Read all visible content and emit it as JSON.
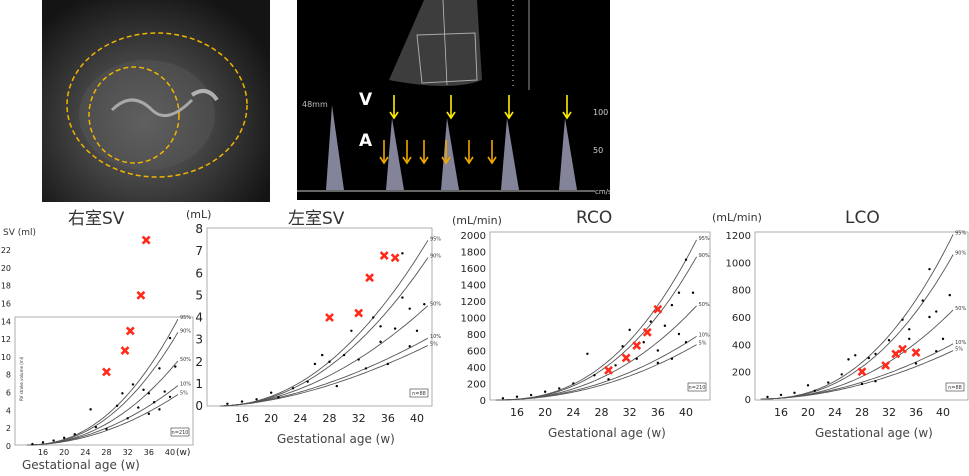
{
  "ultrasound_left": {
    "description_marks": [
      "dashed-ellipse-outer",
      "dashed-ellipse-inner"
    ],
    "ring_color": "#f0b400"
  },
  "ultrasound_right": {
    "label_v": "V",
    "label_a": "A",
    "depth_label": "48mm",
    "scale_100": "100",
    "scale_50": "50",
    "scale_unit": "cm/s",
    "v_arrow_color": "#ffee00",
    "a_arrow_color": "#f0a800"
  },
  "colors": {
    "patient": "#ff2a1a",
    "reference": "#000000",
    "curve": "#555555"
  },
  "chart_data": [
    {
      "id": "rvsv",
      "type": "scatter",
      "title": "右室SV",
      "ylabel": "SV (ml)",
      "inner_ylabel": "RV stroke volume (ml)",
      "xlabel": "Gestational age (w)",
      "x_unit": "(w)",
      "xlim": [
        12,
        42
      ],
      "ylim": [
        0,
        24
      ],
      "xticks": [
        16,
        20,
        24,
        28,
        32,
        36,
        40
      ],
      "yticks": [
        0,
        2,
        4,
        6,
        8,
        10,
        12,
        14,
        16,
        18,
        20,
        22
      ],
      "n_label": "n=210",
      "percentiles": [
        {
          "name": "95%",
          "at40": 12.5,
          "exp": 2.3
        },
        {
          "name": "90%",
          "at40": 11.2,
          "exp": 2.3
        },
        {
          "name": "50%",
          "at40": 8.4,
          "exp": 2.2
        },
        {
          "name": "10%",
          "at40": 6.0,
          "exp": 2.0
        },
        {
          "name": "5%",
          "at40": 5.1,
          "exp": 2.0
        }
      ],
      "patient": [
        [
          28,
          8.2
        ],
        [
          31.5,
          10.6
        ],
        [
          32.5,
          12.8
        ],
        [
          34.5,
          16.8
        ],
        [
          35.5,
          23.0
        ]
      ],
      "reference": [
        [
          14,
          0.1
        ],
        [
          16,
          0.3
        ],
        [
          18,
          0.5
        ],
        [
          20,
          0.8
        ],
        [
          22,
          1.2
        ],
        [
          25,
          4.0
        ],
        [
          26,
          2.0
        ],
        [
          28,
          1.8
        ],
        [
          30,
          4.4
        ],
        [
          31,
          5.8
        ],
        [
          32,
          3.0
        ],
        [
          33,
          6.8
        ],
        [
          34,
          4.2
        ],
        [
          35,
          6.2
        ],
        [
          36,
          5.8
        ],
        [
          36,
          3.5
        ],
        [
          37,
          4.8
        ],
        [
          38,
          8.6
        ],
        [
          38,
          4.0
        ],
        [
          39,
          6.0
        ],
        [
          40,
          12.0
        ],
        [
          40,
          5.4
        ],
        [
          41,
          8.8
        ]
      ]
    },
    {
      "id": "lvsv",
      "type": "scatter",
      "title": "左室SV",
      "ylabel": "(mL)",
      "xlabel": "Gestational age (w)",
      "xlim": [
        12,
        42
      ],
      "ylim": [
        0,
        8
      ],
      "xticks": [
        16,
        20,
        24,
        28,
        32,
        36,
        40
      ],
      "yticks": [
        0,
        1,
        2,
        3,
        4,
        5,
        6,
        7,
        8
      ],
      "n_label": "n=88",
      "percentiles": [
        {
          "name": "95%",
          "at40": 6.7,
          "exp": 2.1
        },
        {
          "name": "90%",
          "at40": 6.0,
          "exp": 2.1
        },
        {
          "name": "50%",
          "at40": 4.1,
          "exp": 1.9
        },
        {
          "name": "10%",
          "at40": 2.8,
          "exp": 1.7
        },
        {
          "name": "5%",
          "at40": 2.5,
          "exp": 1.7
        }
      ],
      "patient": [
        [
          28,
          4.0
        ],
        [
          32,
          4.2
        ],
        [
          33.5,
          5.8
        ],
        [
          35.5,
          6.8
        ],
        [
          37,
          6.7
        ]
      ],
      "reference": [
        [
          14,
          0.1
        ],
        [
          16,
          0.2
        ],
        [
          18,
          0.3
        ],
        [
          20,
          0.6
        ],
        [
          21,
          0.4
        ],
        [
          23,
          0.8
        ],
        [
          25,
          1.1
        ],
        [
          26,
          1.9
        ],
        [
          27,
          2.3
        ],
        [
          28,
          2.0
        ],
        [
          29,
          0.9
        ],
        [
          30,
          2.3
        ],
        [
          31,
          3.4
        ],
        [
          32,
          2.1
        ],
        [
          33,
          1.7
        ],
        [
          34,
          4.0
        ],
        [
          35,
          2.9
        ],
        [
          35,
          3.6
        ],
        [
          36,
          1.9
        ],
        [
          37,
          3.5
        ],
        [
          38,
          4.9
        ],
        [
          38,
          6.9
        ],
        [
          39,
          4.4
        ],
        [
          39,
          2.7
        ],
        [
          40,
          3.4
        ],
        [
          41,
          4.6
        ]
      ]
    },
    {
      "id": "rco",
      "type": "scatter",
      "title": "RCO",
      "ylabel": "(mL/min)",
      "xlabel": "Gestational age (w)",
      "xlim": [
        12,
        42
      ],
      "ylim": [
        0,
        2000
      ],
      "xticks": [
        16,
        20,
        24,
        28,
        32,
        36,
        40
      ],
      "yticks": [
        0,
        200,
        400,
        600,
        800,
        1000,
        1200,
        1400,
        1600,
        1800,
        2000
      ],
      "n_label": "n=210",
      "percentiles": [
        {
          "name": "95%",
          "at40": 1700,
          "exp": 2.5
        },
        {
          "name": "90%",
          "at40": 1520,
          "exp": 2.5
        },
        {
          "name": "50%",
          "at40": 1010,
          "exp": 2.3
        },
        {
          "name": "10%",
          "at40": 690,
          "exp": 2.1
        },
        {
          "name": "5%",
          "at40": 600,
          "exp": 2.1
        }
      ],
      "patient": [
        [
          29,
          360
        ],
        [
          31.5,
          510
        ],
        [
          33,
          660
        ],
        [
          34.5,
          820
        ],
        [
          36,
          1100
        ]
      ],
      "reference": [
        [
          14,
          20
        ],
        [
          16,
          40
        ],
        [
          18,
          60
        ],
        [
          20,
          100
        ],
        [
          22,
          140
        ],
        [
          24,
          200
        ],
        [
          26,
          560
        ],
        [
          27,
          300
        ],
        [
          29,
          250
        ],
        [
          30,
          420
        ],
        [
          31,
          650
        ],
        [
          32,
          850
        ],
        [
          33,
          500
        ],
        [
          34,
          700
        ],
        [
          35,
          950
        ],
        [
          36,
          600
        ],
        [
          36,
          450
        ],
        [
          37,
          900
        ],
        [
          38,
          1150
        ],
        [
          38,
          500
        ],
        [
          39,
          1300
        ],
        [
          39,
          800
        ],
        [
          40,
          700
        ],
        [
          40,
          1700
        ],
        [
          41,
          1300
        ]
      ]
    },
    {
      "id": "lco",
      "type": "scatter",
      "title": "LCO",
      "ylabel": "(mL/min)",
      "xlabel": "Gestational age (w)",
      "xlim": [
        12,
        42
      ],
      "ylim": [
        0,
        1200
      ],
      "xticks": [
        16,
        20,
        24,
        28,
        32,
        36,
        40
      ],
      "yticks": [
        0,
        200,
        400,
        600,
        800,
        1000,
        1200
      ],
      "n_label": "n=88",
      "percentiles": [
        {
          "name": "95%",
          "at40": 1060,
          "exp": 2.4
        },
        {
          "name": "90%",
          "at40": 930,
          "exp": 2.4
        },
        {
          "name": "50%",
          "at40": 580,
          "exp": 2.2
        },
        {
          "name": "10%",
          "at40": 365,
          "exp": 1.9
        },
        {
          "name": "5%",
          "at40": 320,
          "exp": 1.9
        }
      ],
      "patient": [
        [
          28,
          200
        ],
        [
          31.5,
          245
        ],
        [
          33,
          330
        ],
        [
          34,
          365
        ],
        [
          36,
          340
        ]
      ],
      "reference": [
        [
          14,
          15
        ],
        [
          16,
          30
        ],
        [
          18,
          45
        ],
        [
          20,
          100
        ],
        [
          21,
          60
        ],
        [
          23,
          120
        ],
        [
          25,
          180
        ],
        [
          26,
          290
        ],
        [
          27,
          320
        ],
        [
          28,
          110
        ],
        [
          29,
          300
        ],
        [
          30,
          130
        ],
        [
          30,
          330
        ],
        [
          32,
          430
        ],
        [
          34,
          580
        ],
        [
          35,
          510
        ],
        [
          35,
          440
        ],
        [
          36,
          260
        ],
        [
          37,
          720
        ],
        [
          38,
          600
        ],
        [
          38,
          950
        ],
        [
          39,
          640
        ],
        [
          39,
          350
        ],
        [
          40,
          440
        ],
        [
          41,
          760
        ]
      ]
    }
  ]
}
